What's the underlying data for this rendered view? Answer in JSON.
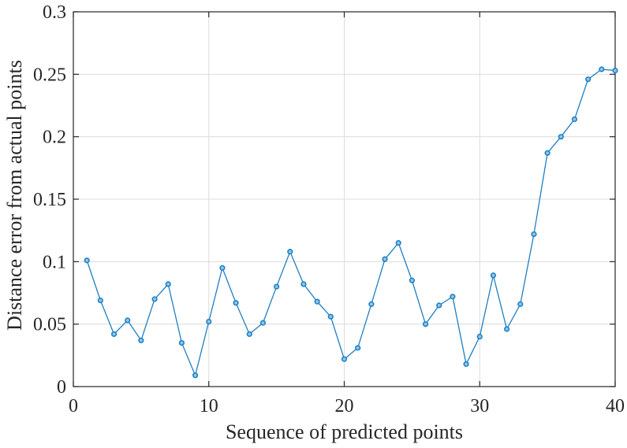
{
  "chart_data": {
    "type": "line",
    "title": "",
    "xlabel": "Sequence of predicted points",
    "ylabel": "Distance error from actual points",
    "xlim": [
      0,
      40
    ],
    "ylim": [
      0,
      0.3
    ],
    "xticks": [
      0,
      10,
      20,
      30,
      40
    ],
    "xtick_labels": [
      "0",
      "10",
      "20",
      "30",
      "40"
    ],
    "yticks": [
      0,
      0.05,
      0.1,
      0.15,
      0.2,
      0.25,
      0.3
    ],
    "ytick_labels": [
      "0",
      "0.05",
      "0.1",
      "0.15",
      "0.2",
      "0.25",
      "0.3"
    ],
    "grid": true,
    "series": [
      {
        "color": "#1f7fc4",
        "marker": "circle",
        "x": [
          1,
          2,
          3,
          4,
          5,
          6,
          7,
          8,
          9,
          10,
          11,
          12,
          13,
          14,
          15,
          16,
          17,
          18,
          19,
          20,
          21,
          22,
          23,
          24,
          25,
          26,
          27,
          28,
          29,
          30,
          31,
          32,
          33,
          34,
          35,
          36,
          37,
          38,
          39,
          40
        ],
        "y": [
          0.101,
          0.069,
          0.042,
          0.053,
          0.037,
          0.07,
          0.082,
          0.035,
          0.009,
          0.052,
          0.095,
          0.067,
          0.042,
          0.051,
          0.08,
          0.108,
          0.082,
          0.068,
          0.056,
          0.022,
          0.031,
          0.066,
          0.102,
          0.115,
          0.085,
          0.05,
          0.065,
          0.072,
          0.018,
          0.04,
          0.089,
          0.046,
          0.066,
          0.122,
          0.187,
          0.2,
          0.214,
          0.246,
          0.254,
          0.253
        ]
      }
    ]
  }
}
